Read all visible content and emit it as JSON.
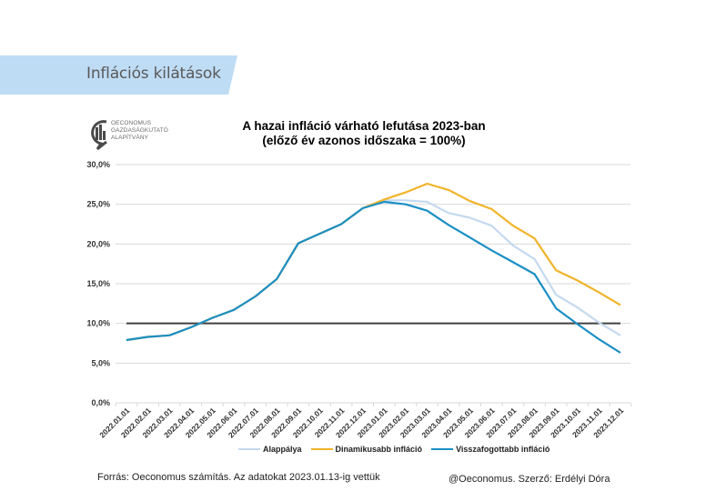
{
  "header": {
    "section_title": "Inflációs kilátások",
    "banner_color": "#bfdcf5"
  },
  "logo": {
    "lines": [
      "OECONOMUS",
      "GAZDASÁGKUTATÓ",
      "ALAPÍTVÁNY"
    ]
  },
  "chart_data": {
    "type": "line",
    "title": "A hazai infláció várható lefutása 2023-ban",
    "subtitle": "(előző év azonos időszaka = 100%)",
    "xlabel": "",
    "ylabel": "",
    "ylim": [
      0,
      30
    ],
    "yticks": [
      "0,0%",
      "5,0%",
      "10,0%",
      "15,0%",
      "20,0%",
      "25,0%",
      "30,0%"
    ],
    "ytick_values": [
      0,
      5,
      10,
      15,
      20,
      25,
      30
    ],
    "grid": true,
    "legend_position": "bottom",
    "x": [
      "2022.01.01",
      "2022.02.01",
      "2022.03.01",
      "2022.04.01",
      "2022.05.01",
      "2022.06.01",
      "2022.07.01",
      "2022.08.01",
      "2022.09.01",
      "2022.10.01",
      "2022.11.01",
      "2022.12.01",
      "2023.01.01",
      "2023.02.01",
      "2023.03.01",
      "2023.04.01",
      "2023.05.01",
      "2023.06.01",
      "2023.07.01",
      "2023.08.01",
      "2023.09.01",
      "2023.10.01",
      "2023.11.01",
      "2023.12.01"
    ],
    "series": [
      {
        "name": "Alappálya",
        "color": "#c5d9ef",
        "values": [
          7.9,
          8.3,
          8.5,
          9.5,
          10.7,
          11.7,
          13.4,
          15.6,
          20.1,
          21.3,
          22.5,
          24.5,
          25.5,
          25.5,
          25.3,
          23.9,
          23.3,
          22.3,
          19.8,
          18.1,
          13.6,
          12.0,
          10.1,
          8.5
        ]
      },
      {
        "name": "Dinamikusabb infláció",
        "color": "#f0b429",
        "values": [
          7.9,
          8.3,
          8.5,
          9.5,
          10.7,
          11.7,
          13.4,
          15.6,
          20.1,
          21.3,
          22.5,
          24.5,
          25.6,
          26.5,
          27.6,
          26.8,
          25.4,
          24.4,
          22.3,
          20.7,
          16.7,
          15.4,
          13.9,
          12.3
        ]
      },
      {
        "name": "Visszafogottabb infláció",
        "color": "#1b8fc4",
        "values": [
          7.9,
          8.3,
          8.5,
          9.5,
          10.7,
          11.7,
          13.4,
          15.6,
          20.1,
          21.3,
          22.5,
          24.5,
          25.3,
          25.0,
          24.2,
          22.4,
          20.8,
          19.2,
          17.7,
          16.2,
          11.9,
          9.9,
          8.0,
          6.3
        ]
      }
    ],
    "reference_line": {
      "value": 10,
      "color": "#404040"
    }
  },
  "footer": {
    "source": "Forrás: Oeconomus számítás. Az adatokat 2023.01.13-ig vettük",
    "author": "@Oeconomus. Szerző: Erdélyi Dóra"
  }
}
